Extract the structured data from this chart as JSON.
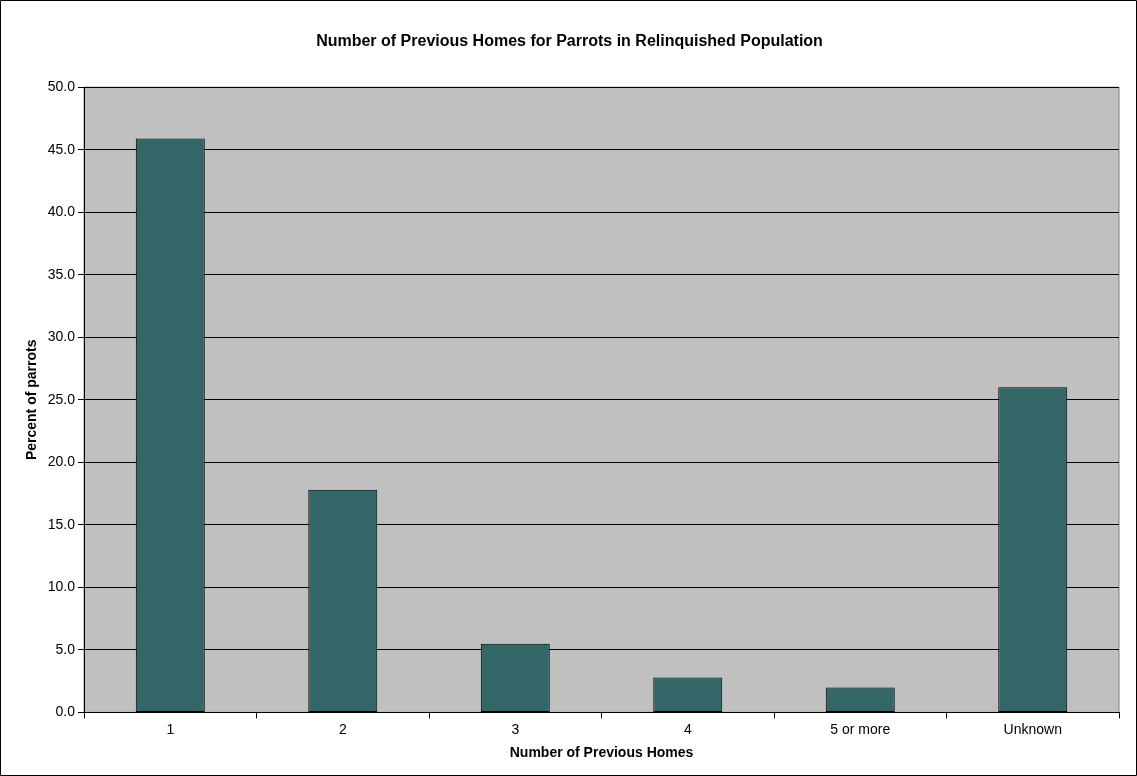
{
  "chart_data": {
    "type": "bar",
    "title": "Number of Previous Homes for Parrots in Relinquished Population",
    "xlabel": "Number of Previous Homes",
    "ylabel": "Percent of parrots",
    "categories": [
      "1",
      "2",
      "3",
      "4",
      "5 or more",
      "Unknown"
    ],
    "values": [
      45.9,
      17.8,
      5.5,
      2.8,
      2.0,
      26.0
    ],
    "color": "#336666",
    "ylim": [
      0,
      50
    ],
    "yticks": [
      {
        "value": 0,
        "label": "0.0"
      },
      {
        "value": 5,
        "label": "5.0"
      },
      {
        "value": 10,
        "label": "10.0"
      },
      {
        "value": 15,
        "label": "15.0"
      },
      {
        "value": 20,
        "label": "20.0"
      },
      {
        "value": 25,
        "label": "25.0"
      },
      {
        "value": 30,
        "label": "30.0"
      },
      {
        "value": 35,
        "label": "35.0"
      },
      {
        "value": 40,
        "label": "40.0"
      },
      {
        "value": 45,
        "label": "45.0"
      },
      {
        "value": 50,
        "label": "50.0"
      }
    ],
    "grid": "y"
  }
}
